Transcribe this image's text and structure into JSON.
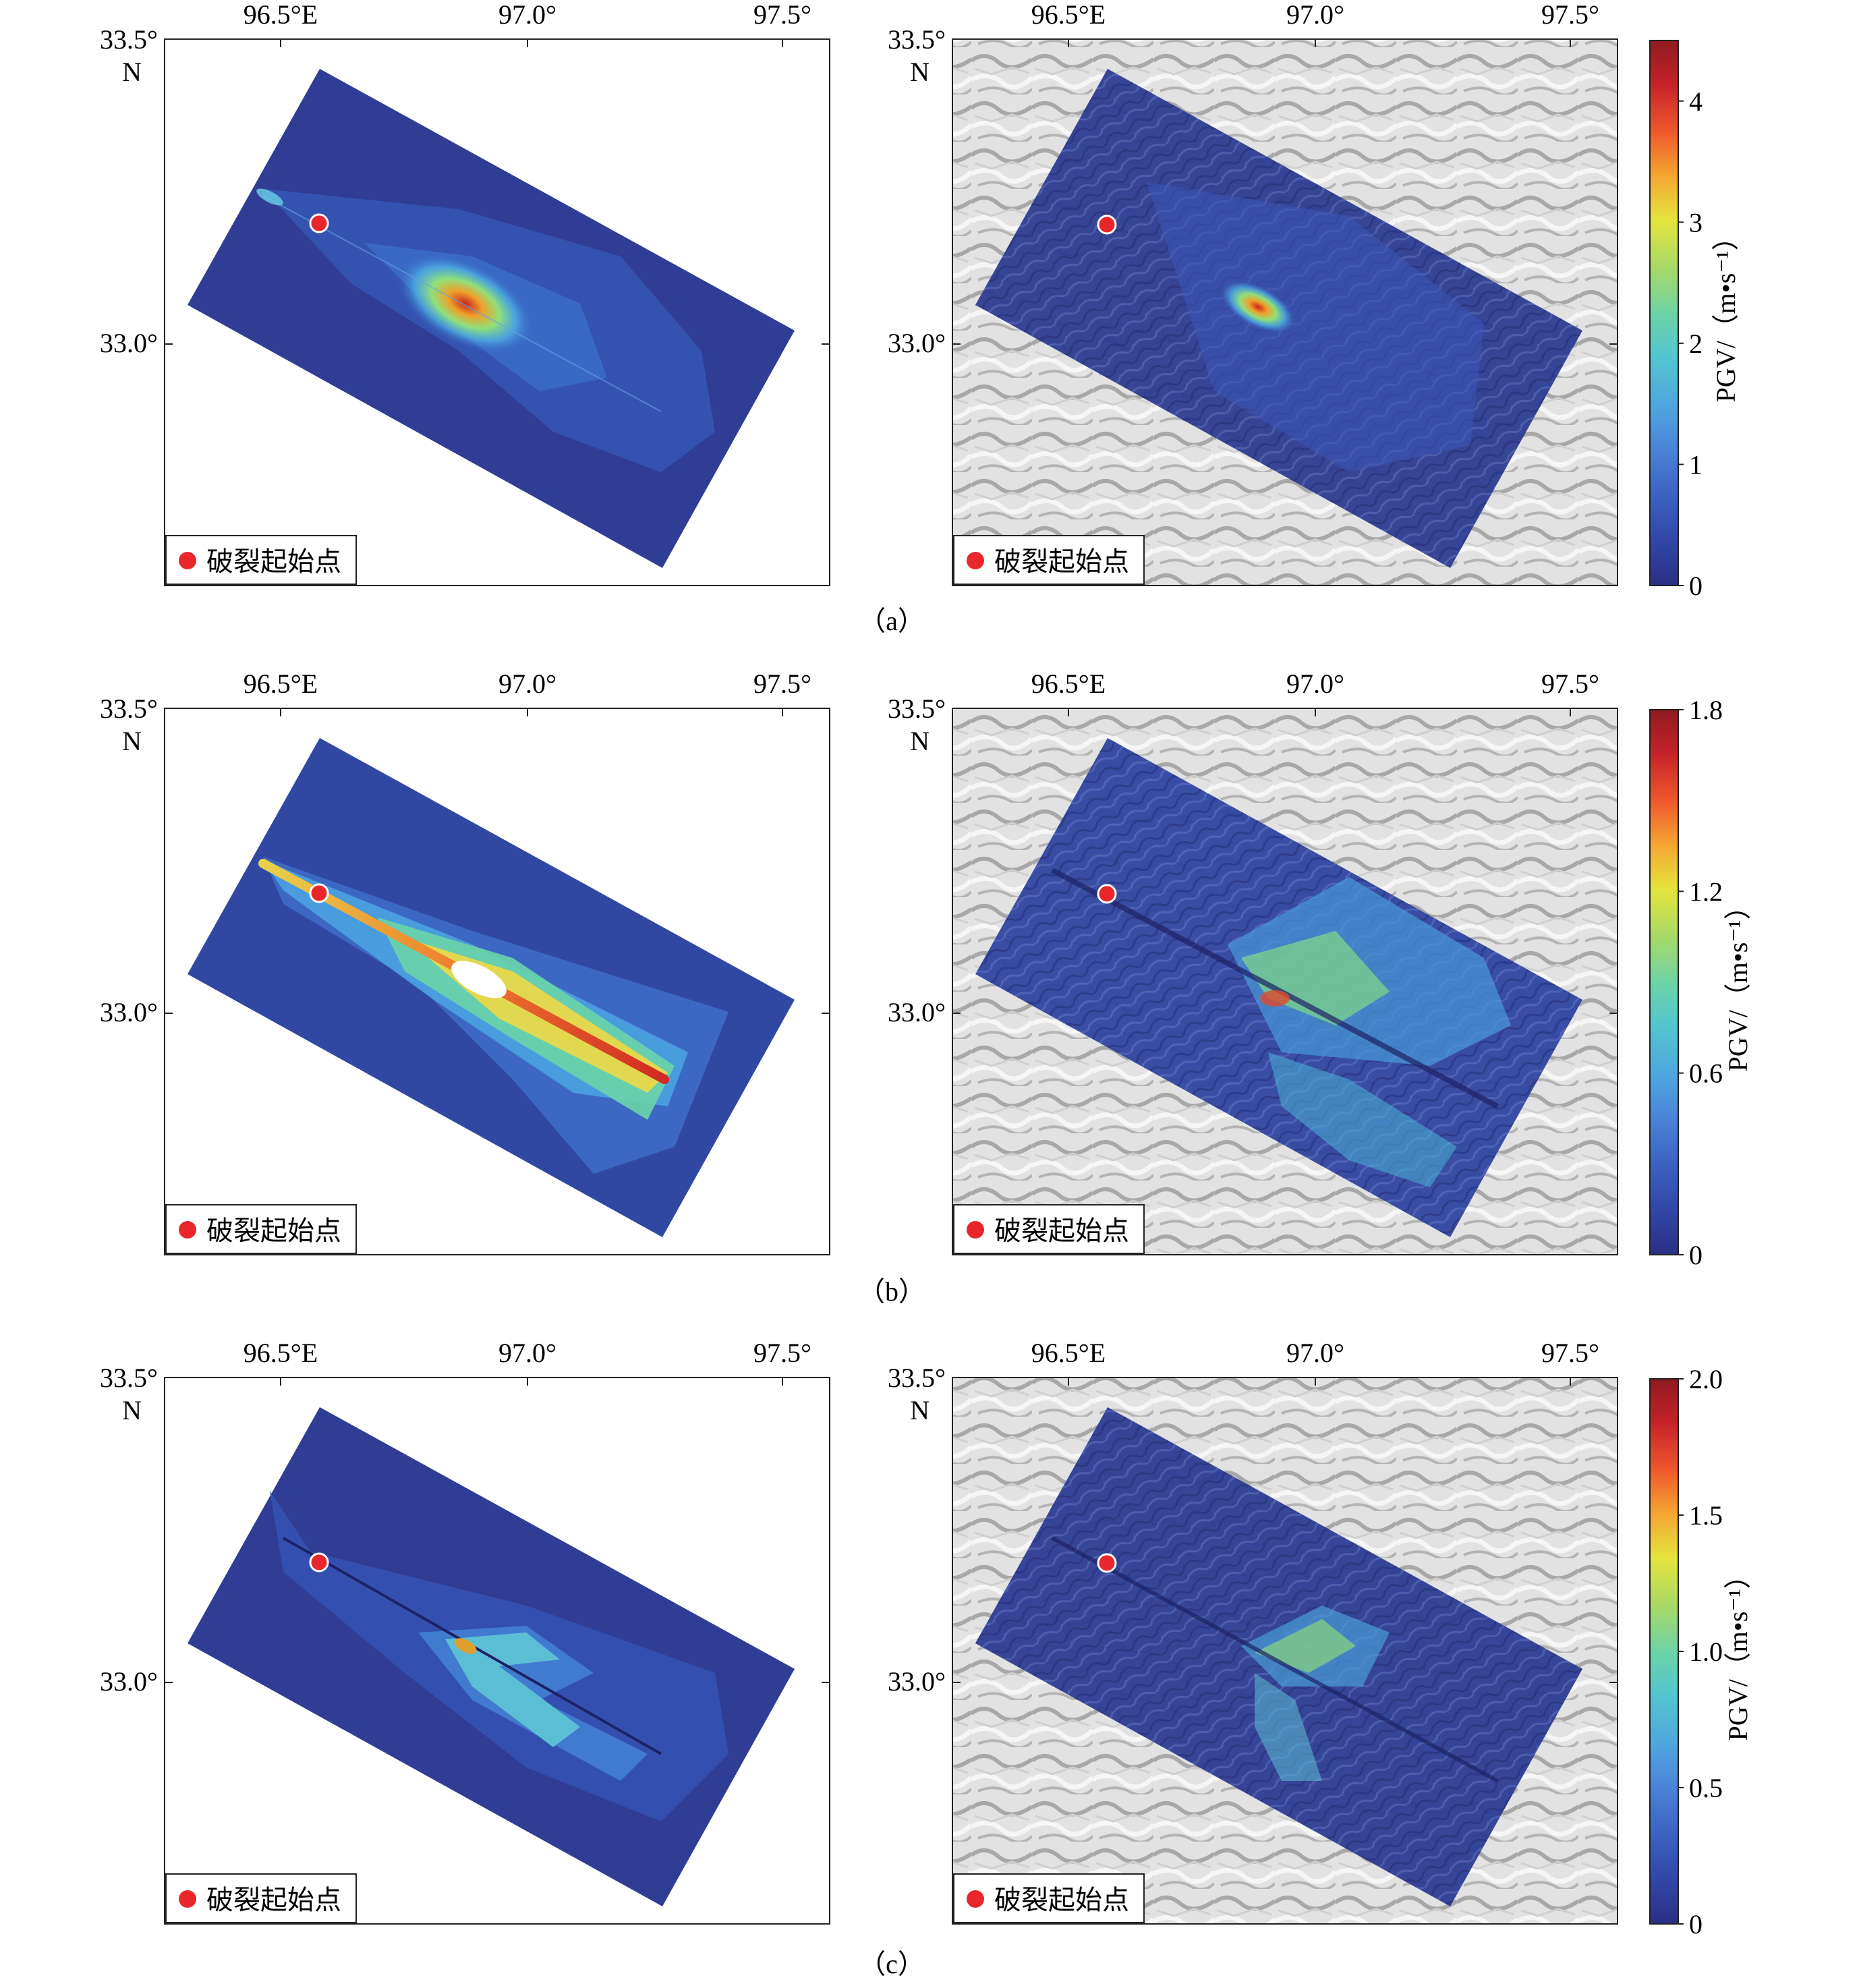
{
  "axes": {
    "x_ticks": [
      "96.5°E",
      "97.0°",
      "97.5°"
    ],
    "y_top": "33.5°",
    "y_top_unit": "N",
    "y_mid": "33.0°"
  },
  "legend": {
    "label": "破裂起始点",
    "marker_color": "#e8262b"
  },
  "colorbar": {
    "label": "PGV/（m•s⁻¹）",
    "colors": [
      "#2b2f85",
      "#3146a6",
      "#3d63c4",
      "#4a84d8",
      "#4fa6e0",
      "#52c6cf",
      "#6dd3a6",
      "#a6d968",
      "#e4e43c",
      "#f5a832",
      "#f05a2c",
      "#c5222a",
      "#8f1a1f"
    ]
  },
  "rows": [
    {
      "label": "（a）",
      "colorbar_ticks": [
        "0",
        "1",
        "2",
        "3",
        "4"
      ],
      "colorbar_max": 4.5
    },
    {
      "label": "（b）",
      "colorbar_ticks": [
        "0",
        "0.6",
        "1.2",
        "1.8"
      ],
      "colorbar_max": 1.8
    },
    {
      "label": "（c）",
      "colorbar_ticks": [
        "0",
        "0.5",
        "1.0",
        "1.5",
        "2.0"
      ],
      "colorbar_max": 2.0
    }
  ]
}
